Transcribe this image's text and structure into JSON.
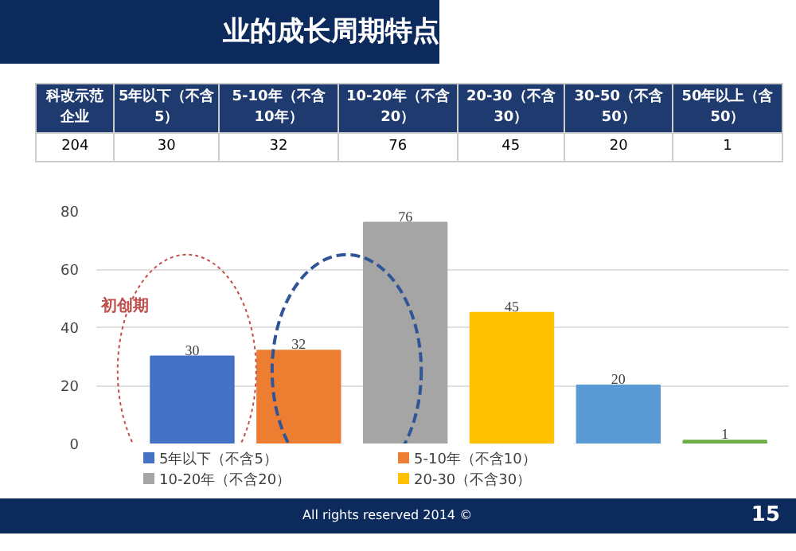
{
  "chart_data": [
    {
      "type": "other",
      "categories": [
        "5年以下（不含5）",
        "5-10年（不含10年）",
        "10-20年（不含20）",
        "20-30（不含30）",
        "30-50（不含50）",
        "50年以上（含50）"
      ],
      "values": [
        30,
        32,
        76,
        45,
        20,
        1
      ],
      "data_labels": true,
      "annotations": [
        "科改示范企业",
        "204"
      ]
    },
    {
      "type": "bar",
      "title": "业的成长周期特点",
      "categories": [
        null,
        null,
        null,
        null,
        null,
        null
      ],
      "series": [
        {
          "name": "5年以下（不含5）",
          "color": "#4472c4",
          "values": [
            30,
            null,
            null,
            null,
            null,
            null
          ]
        },
        {
          "name": "5-10年（不含10）",
          "color": "#ed7d31",
          "values": [
            null,
            32,
            null,
            null,
            null,
            null
          ]
        },
        {
          "name": "10-20年（不含20）",
          "color": "#a5a5a5",
          "values": [
            null,
            null,
            76,
            null,
            null,
            null
          ]
        },
        {
          "name": "20-30（不含30）",
          "color": "#ffc000",
          "values": [
            null,
            null,
            null,
            45,
            null,
            null
          ]
        },
        {
          "color": "#5b9bd5",
          "values": [
            null,
            null,
            null,
            null,
            20,
            null
          ]
        },
        {
          "color": "#70ad47",
          "values": [
            null,
            null,
            null,
            null,
            null,
            1
          ]
        }
      ],
      "ylim": [
        0,
        80
      ],
      "yticks": [
        0,
        20,
        40,
        60,
        80
      ],
      "grid": "y",
      "legend": "bottom",
      "tick_labels": "y",
      "data_labels": true,
      "annotations": [
        "初创期",
        "All rights reserved 2014 ©",
        "15"
      ]
    }
  ]
}
